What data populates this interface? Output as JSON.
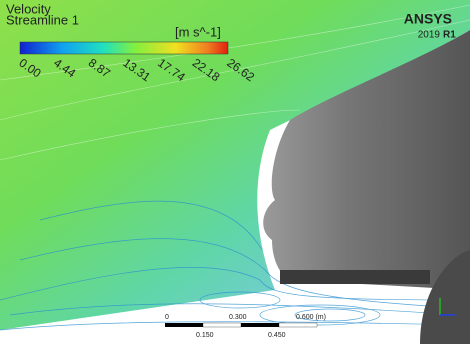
{
  "legend": {
    "title": "Velocity",
    "subtitle": "Streamline 1",
    "unit": "[m s^-1]",
    "ticks": [
      "0.00",
      "4.44",
      "8.87",
      "13.31",
      "17.74",
      "22.18",
      "26.62"
    ]
  },
  "logo": {
    "brand": "ANSYS",
    "version": "2019",
    "release": "R1"
  },
  "scale_bar": {
    "top": [
      "0",
      "0.300",
      "0.600 (m)"
    ],
    "bottom": [
      "0.150",
      "0.450"
    ]
  }
}
